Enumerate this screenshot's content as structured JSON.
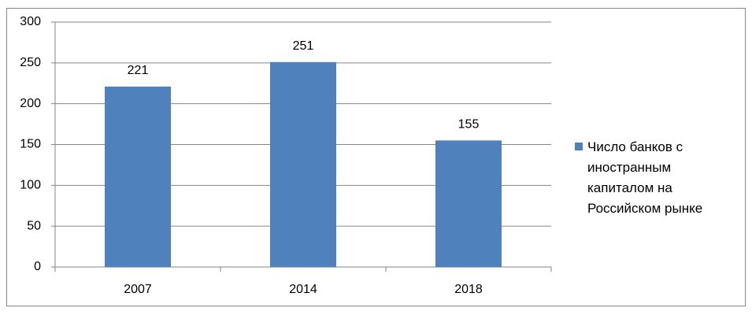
{
  "chart_data": {
    "type": "bar",
    "categories": [
      "2007",
      "2014",
      "2018"
    ],
    "series": [
      {
        "name": "Число банков с иностранным капиталом на Российском рынке",
        "color": "#4f81bd",
        "values": [
          221,
          251,
          155
        ]
      }
    ],
    "ylim": [
      0,
      300
    ],
    "yticks": [
      0,
      50,
      100,
      150,
      200,
      250,
      300
    ],
    "grid": true,
    "legend": "right"
  }
}
